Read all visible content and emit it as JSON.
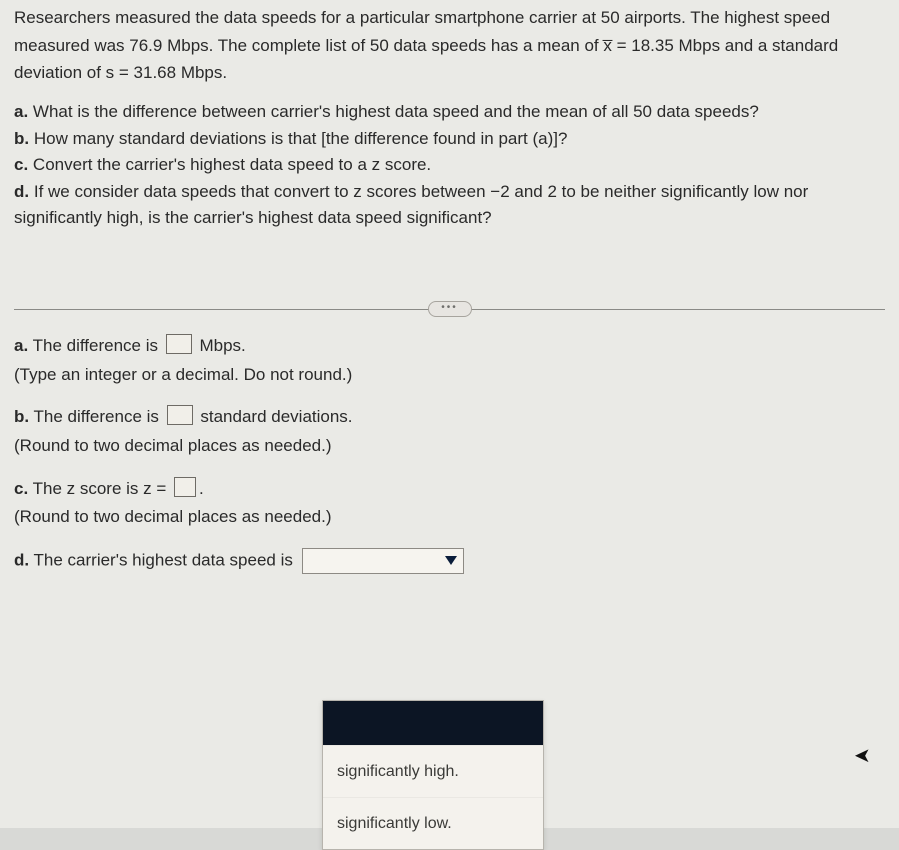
{
  "problem": {
    "line1": "Researchers measured the data speeds for a particular smartphone carrier at 50 airports. The highest speed",
    "line2a": "measured was 76.9 Mbps. The complete list of 50 data speeds has a mean of ",
    "xbar": "x̅",
    "line2b": " = 18.35 Mbps and a standard",
    "line3": "deviation of s = 31.68 Mbps."
  },
  "parts": {
    "a": "What is the difference between carrier's highest data speed and the mean of all 50 data speeds?",
    "b": "How many standard deviations is that [the difference found in part (a)]?",
    "c": "Convert the carrier's highest data speed to a z score.",
    "d1": "If we consider data speeds that convert to z scores between −2 and 2 to be neither significantly low nor",
    "d2": "significantly high, is the carrier's highest data speed significant?"
  },
  "ellipsis": "•••",
  "answers": {
    "a_pre": "The difference is",
    "a_post": "Mbps.",
    "a_hint": "(Type an integer or a decimal. Do not round.)",
    "b_pre": "The difference is",
    "b_post": "standard deviations.",
    "b_hint": "(Round to two decimal places as needed.)",
    "c_pre": "The z score is z =",
    "c_post": ".",
    "c_hint": "(Round to two decimal places as needed.)",
    "d_pre": "The carrier's highest data speed is"
  },
  "dropdown": {
    "opt1": "significantly high.",
    "opt2": "significantly low."
  },
  "letters": {
    "a": "a.",
    "b": "b.",
    "c": "c.",
    "d": "d."
  },
  "colors": {
    "page_bg": "#eaeae6",
    "text": "#2a2a2a",
    "rule": "#8a8a86",
    "box_border": "#6e6b65",
    "select_bg": "#f6f4ef",
    "dropdown_sel_bg": "#0c1524"
  }
}
